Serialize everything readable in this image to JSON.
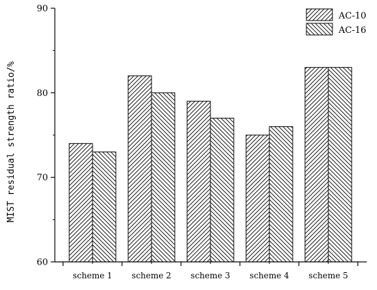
{
  "chart_data": {
    "type": "bar",
    "categories": [
      "scheme 1",
      "scheme 2",
      "scheme 3",
      "scheme 4",
      "scheme 5"
    ],
    "series": [
      {
        "name": "AC-10",
        "values": [
          74,
          82,
          79,
          75,
          83
        ],
        "pattern": "hatch-forward"
      },
      {
        "name": "AC-16",
        "values": [
          73,
          80,
          77,
          76,
          83
        ],
        "pattern": "hatch-backward"
      }
    ],
    "title": "",
    "xlabel": "",
    "ylabel": "MIST residual strength ratio/%",
    "ylim": [
      60,
      90
    ],
    "yticks": [
      60,
      70,
      80,
      90
    ],
    "grid": false,
    "legend_position": "top-right",
    "colors": {
      "bar_stroke": "#000000",
      "hatch": "#000000",
      "background": "#ffffff"
    }
  }
}
